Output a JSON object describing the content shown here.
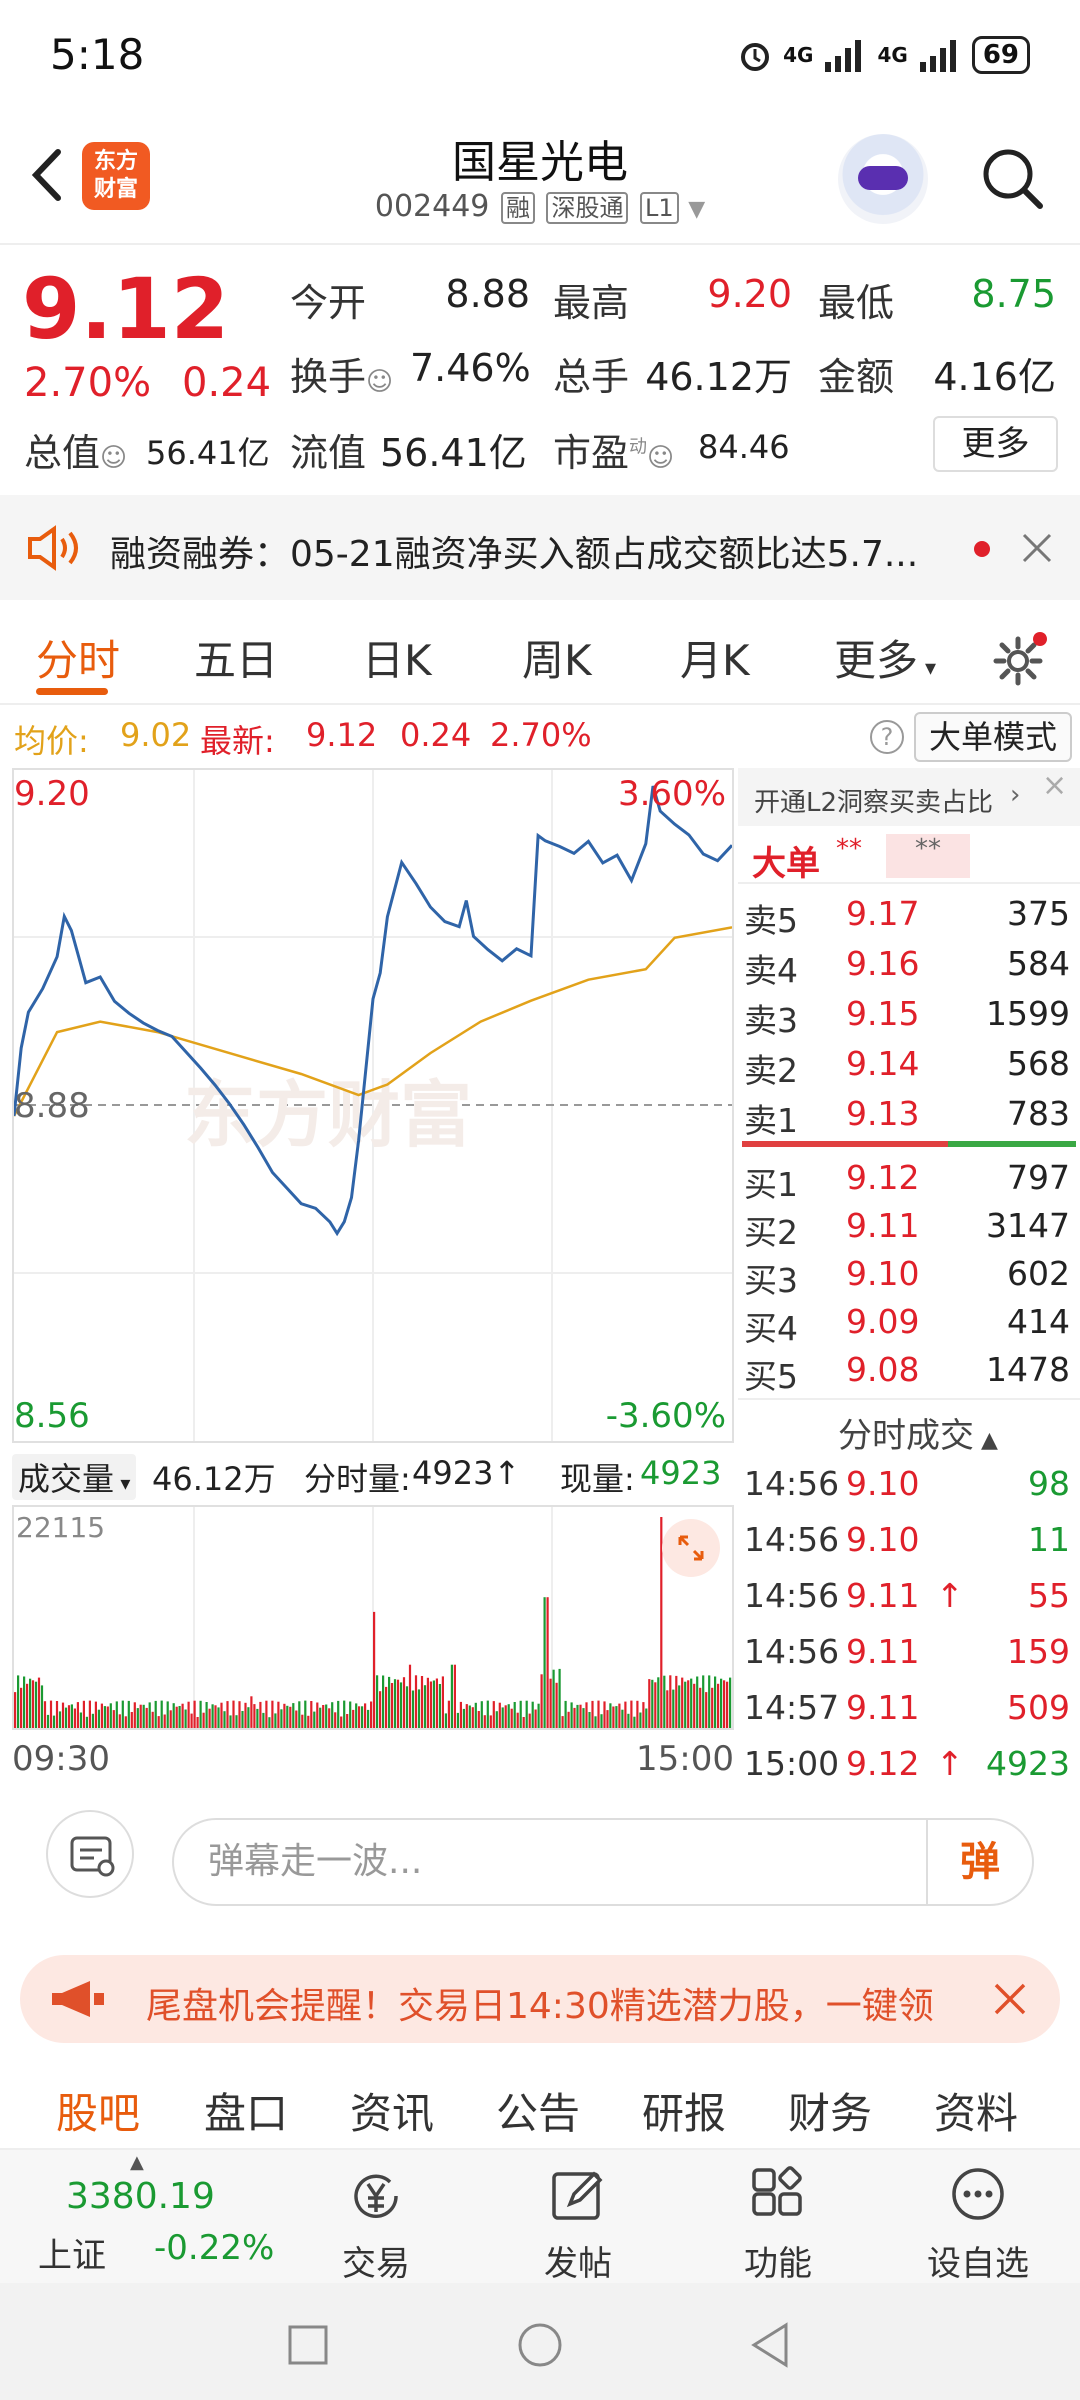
{
  "status": {
    "time": "5:18",
    "battery": "69",
    "net1": "4G",
    "net2": "4G"
  },
  "header": {
    "logo_line1": "东方",
    "logo_line2": "财富",
    "title": "国星光电",
    "code": "002449",
    "tags": [
      "融",
      "深股通",
      "L1"
    ]
  },
  "quote": {
    "price": "9.12",
    "pct": "2.70%",
    "change": "0.24",
    "open_label": "今开",
    "open": "8.88",
    "high_label": "最高",
    "high": "9.20",
    "low_label": "最低",
    "low": "8.75",
    "turnover_label": "换手",
    "turnover": "7.46%",
    "volume_label": "总手",
    "volume": "46.12万",
    "amount_label": "金额",
    "amount": "4.16亿",
    "mktcap_label": "总值",
    "mktcap": "56.41亿",
    "float_label": "流值",
    "float": "56.41亿",
    "pe_label": "市盈",
    "pe_sup": "动",
    "pe": "84.46",
    "more": "更多"
  },
  "notice": {
    "text": "融资融券：05-21融资净买入额占成交额比达5.7..."
  },
  "tabs": [
    "分时",
    "五日",
    "日K",
    "周K",
    "月K",
    "更多"
  ],
  "info": {
    "avg_label": "均价:",
    "avg": "9.02",
    "latest_label": "最新:",
    "latest": "9.12",
    "change": "0.24",
    "pct": "2.70%",
    "big_order_mode": "大单模式"
  },
  "chart": {
    "top_price": "9.20",
    "top_pct": "3.60%",
    "mid_price": "8.88",
    "bottom_price": "8.56",
    "bottom_pct": "-3.60%",
    "watermark": "东方财富"
  },
  "volume": {
    "label": "成交量",
    "total": "46.12万",
    "fenshi_label": "分时量:",
    "fenshi": "4923",
    "now_label": "现量:",
    "now": "4923",
    "max": "22115",
    "time_start": "09:30",
    "time_end": "15:00"
  },
  "book": {
    "l2": "开通L2洞察买卖占比",
    "big_label": "大单",
    "big_stars": "**",
    "big_stars2": "**",
    "asks": [
      {
        "label": "卖5",
        "price": "9.17",
        "vol": "375"
      },
      {
        "label": "卖4",
        "price": "9.16",
        "vol": "584"
      },
      {
        "label": "卖3",
        "price": "9.15",
        "vol": "1599"
      },
      {
        "label": "卖2",
        "price": "9.14",
        "vol": "568"
      },
      {
        "label": "卖1",
        "price": "9.13",
        "vol": "783"
      }
    ],
    "bids": [
      {
        "label": "买1",
        "price": "9.12",
        "vol": "797"
      },
      {
        "label": "买2",
        "price": "9.11",
        "vol": "3147"
      },
      {
        "label": "买3",
        "price": "9.10",
        "vol": "602"
      },
      {
        "label": "买4",
        "price": "9.09",
        "vol": "414"
      },
      {
        "label": "买5",
        "price": "9.08",
        "vol": "1478"
      }
    ],
    "trades_title": "分时成交",
    "trades": [
      {
        "time": "14:56",
        "price": "9.10",
        "vol": "98",
        "arrow": ""
      },
      {
        "time": "14:56",
        "price": "9.10",
        "vol": "11",
        "arrow": ""
      },
      {
        "time": "14:56",
        "price": "9.11",
        "vol": "55",
        "arrow": "↑"
      },
      {
        "time": "14:56",
        "price": "9.11",
        "vol": "159",
        "arrow": ""
      },
      {
        "time": "14:57",
        "price": "9.11",
        "vol": "509",
        "arrow": ""
      },
      {
        "time": "15:00",
        "price": "9.12",
        "vol": "4923",
        "arrow": "↑"
      }
    ]
  },
  "danmaku": {
    "placeholder": "弹幕走一波...",
    "button": "弹"
  },
  "promo": {
    "text": "尾盘机会提醒！交易日14:30精选潜力股，一键领"
  },
  "subtabs": [
    "股吧",
    "盘口",
    "资讯",
    "公告",
    "研报",
    "财务",
    "资料"
  ],
  "bottom": {
    "index_value": "3380.19",
    "index_name": "上证",
    "index_change": "-0.22%",
    "items": [
      "交易",
      "发帖",
      "功能",
      "设自选"
    ]
  },
  "colors": {
    "up": "#e0202a",
    "down": "#1a9a32",
    "accent": "#e85c0d",
    "avg": "#e2a21a",
    "line": "#2f64a8"
  }
}
